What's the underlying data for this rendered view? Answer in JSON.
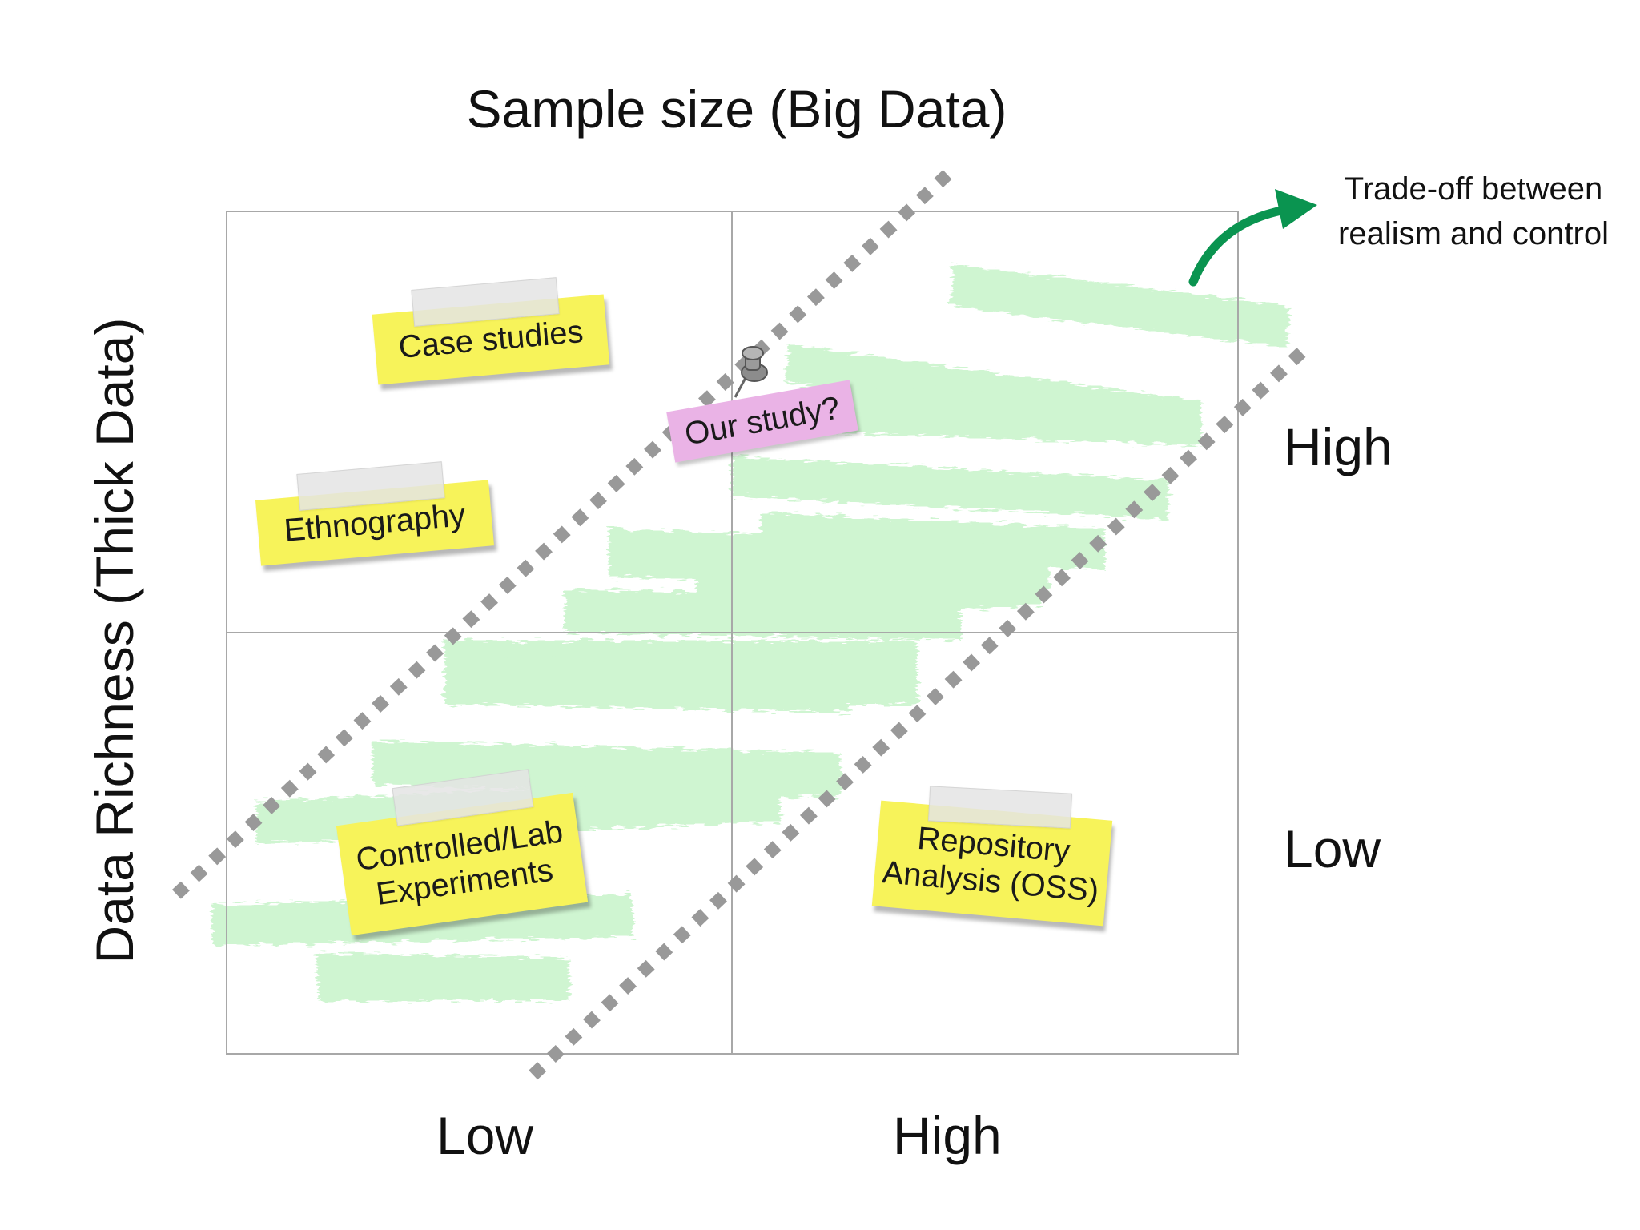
{
  "title": "Sample size (Big Data)",
  "y_axis_label": "Data Richness (Thick Data)",
  "x_ticks": {
    "low": "Low",
    "high": "High"
  },
  "y_ticks": {
    "high": "High",
    "low": "Low"
  },
  "tradeoff_label": "Trade-off between\nrealism and control",
  "notes": {
    "case_studies": "Case studies",
    "ethnography": "Ethnography",
    "our_study": "Our study?",
    "controlled": "Controlled/Lab\nExperiments",
    "repository": "Repository\nAnalysis (OSS)"
  },
  "colors": {
    "sticky_note": "#f7f35a",
    "our_study_note": "#eab3e6",
    "highlight_band": "#cdf5cf",
    "dotted_line": "#999999",
    "arrow": "#0a9450",
    "grid": "#a8a8a8"
  }
}
